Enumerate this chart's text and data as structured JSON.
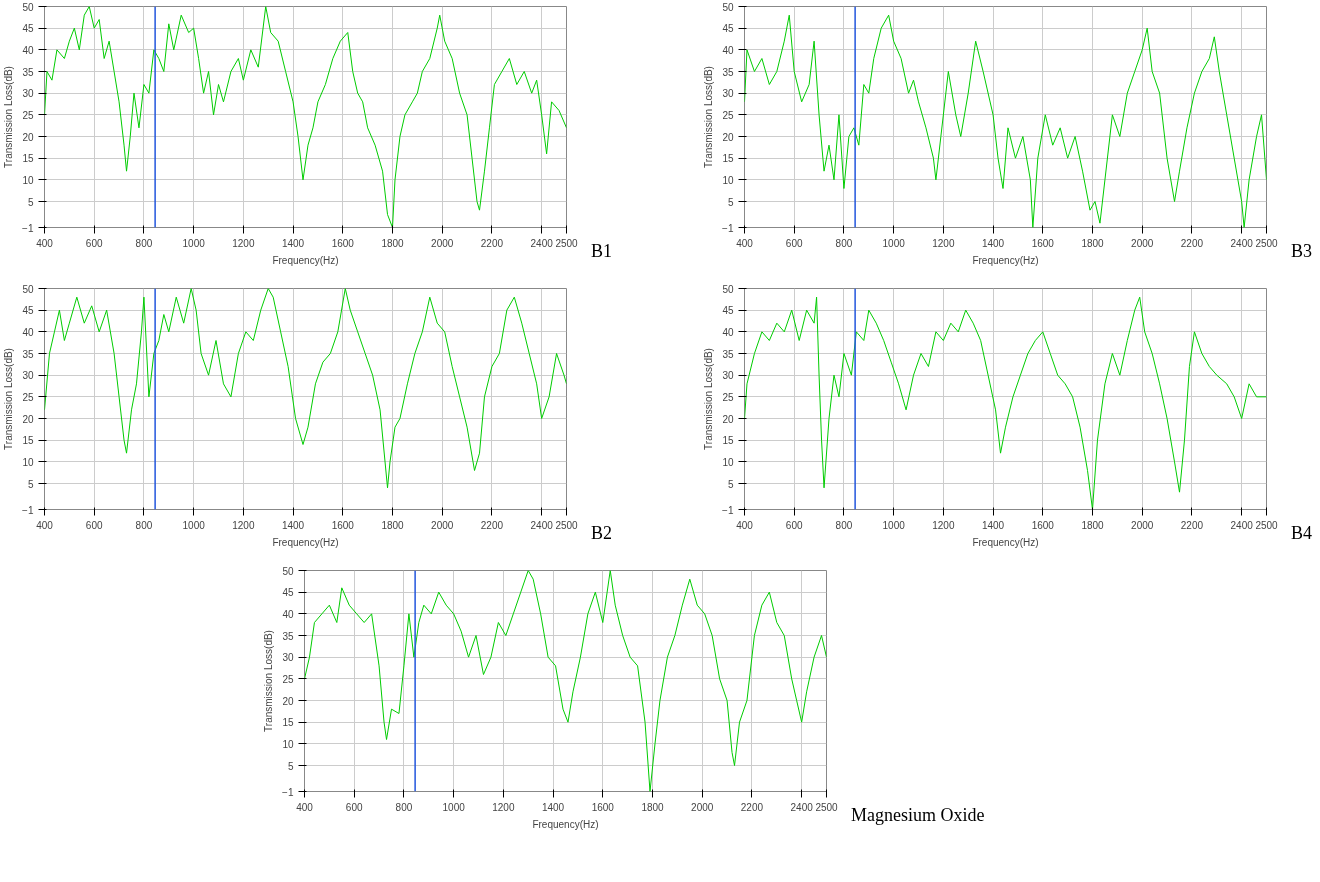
{
  "chart_data": [
    {
      "type": "line",
      "annotations": [
        "B1"
      ],
      "xlabel": "Frequency(Hz)",
      "ylabel": "Transmission Loss(dB)",
      "xlim": [
        400,
        2500
      ],
      "ylim": [
        -1,
        50
      ],
      "xticks": [
        400,
        600,
        800,
        1000,
        1200,
        1400,
        1600,
        1800,
        2000,
        2200,
        2400,
        2500
      ],
      "yticks": [
        -1,
        5,
        10,
        15,
        20,
        25,
        30,
        35,
        40,
        45,
        50
      ],
      "grid": true,
      "ref_lines": [
        {
          "axis": "x",
          "value": 845,
          "label": null,
          "color": "#2255dd"
        }
      ],
      "series": [
        {
          "color": "#00cc00",
          "x": [
            400,
            410,
            430,
            450,
            480,
            500,
            520,
            540,
            560,
            580,
            600,
            620,
            640,
            660,
            680,
            700,
            720,
            730,
            745,
            760,
            780,
            800,
            820,
            840,
            860,
            880,
            900,
            920,
            950,
            980,
            1000,
            1020,
            1040,
            1060,
            1080,
            1100,
            1120,
            1150,
            1180,
            1200,
            1230,
            1260,
            1290,
            1310,
            1340,
            1370,
            1400,
            1420,
            1440,
            1460,
            1480,
            1500,
            1530,
            1560,
            1590,
            1620,
            1640,
            1660,
            1680,
            1700,
            1730,
            1760,
            1780,
            1800,
            1810,
            1830,
            1850,
            1880,
            1900,
            1920,
            1950,
            1980,
            1990,
            2010,
            2040,
            2070,
            2100,
            2120,
            2140,
            2150,
            2170,
            2190,
            2210,
            2240,
            2270,
            2300,
            2330,
            2360,
            2380,
            2400,
            2420,
            2440,
            2470,
            2500
          ],
          "values": [
            25,
            35,
            33,
            40,
            38,
            42,
            45,
            40,
            48,
            50,
            45,
            47,
            38,
            42,
            35,
            28,
            18,
            12,
            20,
            30,
            22,
            32,
            30,
            40,
            38,
            35,
            46,
            40,
            48,
            44,
            45,
            38,
            30,
            35,
            25,
            32,
            28,
            35,
            38,
            33,
            40,
            36,
            50,
            44,
            42,
            35,
            28,
            20,
            10,
            18,
            22,
            28,
            32,
            38,
            42,
            44,
            35,
            30,
            28,
            22,
            18,
            12,
            2,
            -1,
            10,
            20,
            25,
            28,
            30,
            35,
            38,
            45,
            48,
            42,
            38,
            30,
            25,
            15,
            5,
            3,
            12,
            22,
            32,
            35,
            38,
            32,
            35,
            30,
            33,
            25,
            16,
            28,
            26,
            22
          ]
        }
      ]
    },
    {
      "type": "line",
      "annotations": [
        "B3"
      ],
      "xlabel": "Frequency(Hz)",
      "ylabel": "Transmission Loss(dB)",
      "xlim": [
        400,
        2500
      ],
      "ylim": [
        -1,
        50
      ],
      "xticks": [
        400,
        600,
        800,
        1000,
        1200,
        1400,
        1600,
        1800,
        2000,
        2200,
        2400,
        2500
      ],
      "yticks": [
        -1,
        5,
        10,
        15,
        20,
        25,
        30,
        35,
        40,
        45,
        50
      ],
      "grid": true,
      "ref_lines": [
        {
          "axis": "x",
          "value": 845,
          "label": null,
          "color": "#2255dd"
        }
      ],
      "series": [
        {
          "color": "#00cc00",
          "x": [
            400,
            410,
            440,
            470,
            500,
            530,
            560,
            580,
            600,
            630,
            660,
            680,
            700,
            720,
            740,
            760,
            780,
            800,
            820,
            840,
            860,
            880,
            900,
            920,
            950,
            980,
            1000,
            1030,
            1060,
            1080,
            1100,
            1130,
            1160,
            1170,
            1190,
            1220,
            1250,
            1270,
            1300,
            1330,
            1360,
            1400,
            1420,
            1440,
            1460,
            1490,
            1520,
            1550,
            1560,
            1580,
            1610,
            1640,
            1670,
            1700,
            1730,
            1760,
            1790,
            1810,
            1830,
            1850,
            1880,
            1910,
            1940,
            1970,
            2000,
            2020,
            2040,
            2070,
            2100,
            2130,
            2150,
            2180,
            2210,
            2240,
            2270,
            2290,
            2310,
            2340,
            2370,
            2400,
            2410,
            2430,
            2460,
            2480,
            2500
          ],
          "values": [
            28,
            40,
            35,
            38,
            32,
            35,
            42,
            48,
            35,
            28,
            32,
            42,
            25,
            12,
            18,
            10,
            25,
            8,
            20,
            22,
            18,
            32,
            30,
            38,
            45,
            48,
            42,
            38,
            30,
            33,
            28,
            22,
            15,
            10,
            20,
            35,
            25,
            20,
            30,
            42,
            35,
            25,
            15,
            8,
            22,
            15,
            20,
            10,
            -1,
            15,
            25,
            18,
            22,
            15,
            20,
            12,
            3,
            5,
            0,
            10,
            25,
            20,
            30,
            35,
            40,
            45,
            35,
            30,
            15,
            5,
            12,
            22,
            30,
            35,
            38,
            43,
            35,
            25,
            15,
            5,
            -1,
            10,
            20,
            25,
            10
          ]
        }
      ]
    },
    {
      "type": "line",
      "annotations": [
        "B2"
      ],
      "xlabel": "Frequency(Hz)",
      "ylabel": "Transmission Loss(dB)",
      "xlim": [
        400,
        2500
      ],
      "ylim": [
        -1,
        50
      ],
      "xticks": [
        400,
        600,
        800,
        1000,
        1200,
        1400,
        1600,
        1800,
        2000,
        2200,
        2400,
        2500
      ],
      "yticks": [
        -1,
        5,
        10,
        15,
        20,
        25,
        30,
        35,
        40,
        45,
        50
      ],
      "grid": true,
      "ref_lines": [
        {
          "axis": "x",
          "value": 845,
          "label": null,
          "color": "#2255dd"
        }
      ],
      "series": [
        {
          "color": "#00cc00",
          "x": [
            400,
            420,
            440,
            460,
            480,
            500,
            530,
            560,
            590,
            620,
            650,
            680,
            700,
            720,
            730,
            750,
            770,
            790,
            800,
            820,
            840,
            860,
            880,
            900,
            930,
            960,
            990,
            1010,
            1030,
            1060,
            1090,
            1120,
            1150,
            1180,
            1210,
            1240,
            1270,
            1300,
            1320,
            1350,
            1380,
            1410,
            1440,
            1460,
            1490,
            1520,
            1550,
            1580,
            1610,
            1630,
            1660,
            1690,
            1720,
            1750,
            1780,
            1790,
            1810,
            1830,
            1860,
            1890,
            1920,
            1950,
            1980,
            2010,
            2040,
            2070,
            2100,
            2130,
            2150,
            2170,
            2200,
            2230,
            2260,
            2290,
            2320,
            2350,
            2380,
            2400,
            2430,
            2460,
            2490,
            2500
          ],
          "values": [
            22,
            35,
            40,
            45,
            38,
            42,
            48,
            42,
            46,
            40,
            45,
            35,
            25,
            15,
            12,
            22,
            28,
            40,
            48,
            25,
            35,
            38,
            44,
            40,
            48,
            42,
            50,
            45,
            35,
            30,
            38,
            28,
            25,
            35,
            40,
            38,
            45,
            50,
            48,
            40,
            32,
            20,
            14,
            18,
            28,
            33,
            35,
            40,
            50,
            45,
            40,
            35,
            30,
            22,
            4,
            10,
            18,
            20,
            28,
            35,
            40,
            48,
            42,
            40,
            32,
            25,
            18,
            8,
            12,
            25,
            32,
            35,
            45,
            48,
            42,
            35,
            28,
            20,
            25,
            35,
            30,
            28
          ]
        }
      ]
    },
    {
      "type": "line",
      "annotations": [
        "B4"
      ],
      "xlabel": "Frequency(Hz)",
      "ylabel": "Transmission Loss(dB)",
      "xlim": [
        400,
        2500
      ],
      "ylim": [
        -1,
        50
      ],
      "xticks": [
        400,
        600,
        800,
        1000,
        1200,
        1400,
        1600,
        1800,
        2000,
        2200,
        2400,
        2500
      ],
      "yticks": [
        -1,
        5,
        10,
        15,
        20,
        25,
        30,
        35,
        40,
        45,
        50
      ],
      "grid": true,
      "ref_lines": [
        {
          "axis": "x",
          "value": 845,
          "label": null,
          "color": "#2255dd"
        }
      ],
      "series": [
        {
          "color": "#00cc00",
          "x": [
            400,
            410,
            440,
            470,
            500,
            530,
            560,
            590,
            620,
            650,
            680,
            690,
            700,
            710,
            720,
            740,
            760,
            780,
            800,
            830,
            850,
            880,
            900,
            930,
            960,
            990,
            1020,
            1050,
            1080,
            1110,
            1140,
            1170,
            1200,
            1230,
            1260,
            1290,
            1320,
            1350,
            1380,
            1410,
            1430,
            1450,
            1480,
            1510,
            1540,
            1570,
            1600,
            1630,
            1660,
            1690,
            1720,
            1750,
            1780,
            1800,
            1820,
            1850,
            1880,
            1910,
            1940,
            1970,
            1990,
            2010,
            2040,
            2070,
            2100,
            2130,
            2150,
            2170,
            2190,
            2210,
            2240,
            2270,
            2300,
            2340,
            2370,
            2400,
            2430,
            2460,
            2500
          ],
          "values": [
            20,
            28,
            35,
            40,
            38,
            42,
            40,
            45,
            38,
            45,
            42,
            48,
            30,
            15,
            4,
            20,
            30,
            25,
            35,
            30,
            40,
            38,
            45,
            42,
            38,
            33,
            28,
            22,
            30,
            35,
            32,
            40,
            38,
            42,
            40,
            45,
            42,
            38,
            30,
            22,
            12,
            18,
            25,
            30,
            35,
            38,
            40,
            35,
            30,
            28,
            25,
            18,
            8,
            -1,
            15,
            28,
            35,
            30,
            38,
            45,
            48,
            40,
            35,
            28,
            20,
            10,
            3,
            15,
            32,
            40,
            35,
            32,
            30,
            28,
            25,
            20,
            28,
            25,
            25
          ]
        }
      ]
    },
    {
      "type": "line",
      "annotations": [
        "Magnesium Oxide"
      ],
      "xlabel": "Frequency(Hz)",
      "ylabel": "Transmission Loss(dB)",
      "xlim": [
        400,
        2500
      ],
      "ylim": [
        -1,
        50
      ],
      "xticks": [
        400,
        600,
        800,
        1000,
        1200,
        1400,
        1600,
        1800,
        2000,
        2200,
        2400,
        2500
      ],
      "yticks": [
        -1,
        5,
        10,
        15,
        20,
        25,
        30,
        35,
        40,
        45,
        50
      ],
      "grid": true,
      "ref_lines": [
        {
          "axis": "x",
          "value": 845,
          "label": null,
          "color": "#2255dd"
        }
      ],
      "series": [
        {
          "color": "#00cc00",
          "x": [
            400,
            420,
            440,
            470,
            500,
            530,
            550,
            580,
            610,
            640,
            670,
            700,
            720,
            730,
            750,
            780,
            800,
            820,
            840,
            860,
            880,
            910,
            940,
            970,
            1000,
            1030,
            1060,
            1090,
            1120,
            1150,
            1180,
            1210,
            1240,
            1270,
            1300,
            1320,
            1350,
            1380,
            1410,
            1440,
            1460,
            1480,
            1510,
            1540,
            1570,
            1600,
            1630,
            1650,
            1680,
            1710,
            1740,
            1770,
            1790,
            1810,
            1830,
            1860,
            1890,
            1920,
            1950,
            1980,
            2010,
            2040,
            2070,
            2100,
            2120,
            2130,
            2150,
            2180,
            2210,
            2240,
            2270,
            2300,
            2330,
            2360,
            2380,
            2400,
            2420,
            2450,
            2480,
            2500
          ],
          "values": [
            25,
            30,
            38,
            40,
            42,
            38,
            46,
            42,
            40,
            38,
            40,
            28,
            15,
            11,
            18,
            17,
            28,
            40,
            30,
            38,
            42,
            40,
            45,
            42,
            40,
            36,
            30,
            35,
            26,
            30,
            38,
            35,
            40,
            45,
            50,
            48,
            40,
            30,
            28,
            18,
            15,
            22,
            30,
            40,
            45,
            38,
            50,
            42,
            35,
            30,
            28,
            15,
            -1,
            10,
            20,
            30,
            35,
            42,
            48,
            42,
            40,
            35,
            25,
            20,
            8,
            5,
            15,
            20,
            35,
            42,
            45,
            38,
            35,
            25,
            20,
            15,
            22,
            30,
            35,
            30
          ]
        }
      ]
    }
  ]
}
